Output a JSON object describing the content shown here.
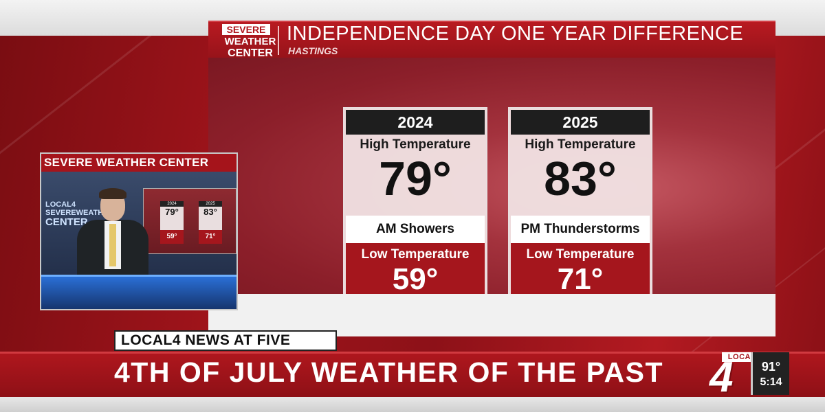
{
  "graphic": {
    "logo": {
      "line1": "SEVERE",
      "line2": "WEATHER",
      "line3": "CENTER"
    },
    "title": "INDEPENDENCE DAY ONE YEAR DIFFERENCE",
    "subtitle": "HASTINGS",
    "cards": [
      {
        "year": "2024",
        "high_label": "High Temperature",
        "high": "79°",
        "condition": "AM Showers",
        "low_label": "Low Temperature",
        "low": "59°"
      },
      {
        "year": "2025",
        "high_label": "High Temperature",
        "high": "83°",
        "condition": "PM Thunderstorms",
        "low_label": "Low Temperature",
        "low": "71°"
      }
    ]
  },
  "pip": {
    "label": "SEVERE WEATHER CENTER",
    "studio_logo": {
      "line1": "LOCAL4",
      "line2": "SEVEREWEATHER",
      "line3": "CENTER"
    },
    "screen": [
      {
        "year": "2024",
        "high": "79°",
        "low": "59°"
      },
      {
        "year": "2025",
        "high": "83°",
        "low": "71°"
      }
    ]
  },
  "lower_third": {
    "show": "LOCAL4 NEWS AT FIVE",
    "headline": "4TH OF JULY WEATHER OF THE PAST"
  },
  "bug": {
    "local": "LOCAL",
    "number": "4",
    "temperature": "91°",
    "time": "5:14"
  },
  "colors": {
    "brand_red": "#a5141b",
    "dark_header": "#1e1e1e"
  }
}
